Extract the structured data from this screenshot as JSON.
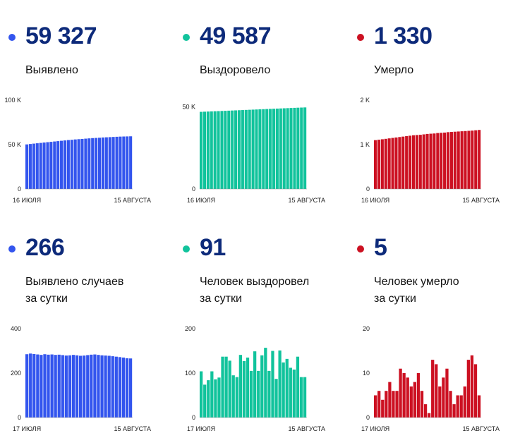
{
  "colors": {
    "blue": "#3355ee",
    "green": "#11c39c",
    "red": "#cc1122",
    "number": "#0d2a7a"
  },
  "panels": [
    {
      "number": "59 327",
      "label_lines": [
        "Выявлено"
      ],
      "color": "#3355ee",
      "chart_data": {
        "type": "bar",
        "yticks": [
          "0",
          "50 K",
          "100 K"
        ],
        "ylim": [
          0,
          100000
        ],
        "x_start_label": "16 июля",
        "x_end_label": "15 августа",
        "values": [
          50200,
          50700,
          51100,
          51500,
          51900,
          52300,
          52700,
          53100,
          53500,
          53900,
          54300,
          54700,
          55100,
          55400,
          55800,
          56100,
          56400,
          56700,
          57000,
          57300,
          57500,
          57700,
          58000,
          58200,
          58400,
          58600,
          58800,
          59000,
          59100,
          59200,
          59327
        ]
      }
    },
    {
      "number": "49 587",
      "label_lines": [
        "Выздоровело"
      ],
      "color": "#11c39c",
      "chart_data": {
        "type": "bar",
        "yticks": [
          "0",
          "50 K"
        ],
        "ylim": [
          0,
          54000
        ],
        "x_start_label": "16 июля",
        "x_end_label": "15 августа",
        "values": [
          46900,
          46990,
          47080,
          47170,
          47260,
          47350,
          47440,
          47530,
          47620,
          47710,
          47800,
          47890,
          47980,
          48070,
          48160,
          48250,
          48340,
          48430,
          48520,
          48610,
          48700,
          48790,
          48880,
          48970,
          49060,
          49150,
          49240,
          49330,
          49420,
          49500,
          49587
        ]
      }
    },
    {
      "number": "1 330",
      "label_lines": [
        "Умерло"
      ],
      "color": "#cc1122",
      "chart_data": {
        "type": "bar",
        "yticks": [
          "0",
          "1 K",
          "2 K"
        ],
        "ylim": [
          0,
          2000
        ],
        "x_start_label": "16 июля",
        "x_end_label": "15 августа",
        "values": [
          1100,
          1110,
          1120,
          1130,
          1140,
          1150,
          1160,
          1170,
          1180,
          1190,
          1200,
          1210,
          1215,
          1220,
          1230,
          1240,
          1245,
          1250,
          1260,
          1265,
          1270,
          1280,
          1285,
          1290,
          1295,
          1300,
          1305,
          1310,
          1315,
          1322,
          1330
        ]
      }
    },
    {
      "number": "266",
      "label_lines": [
        "Выявлено случаев",
        "за сутки"
      ],
      "color": "#3355ee",
      "chart_data": {
        "type": "bar",
        "yticks": [
          "0",
          "200",
          "400"
        ],
        "ylim": [
          0,
          400
        ],
        "x_start_label": "17 июля",
        "x_end_label": "15 августа",
        "values": [
          285,
          288,
          286,
          284,
          282,
          285,
          283,
          284,
          282,
          283,
          281,
          279,
          280,
          282,
          280,
          278,
          279,
          281,
          283,
          284,
          282,
          280,
          279,
          278,
          276,
          274,
          272,
          270,
          267,
          266
        ]
      }
    },
    {
      "number": "91",
      "label_lines": [
        "Человек выздоровел",
        "за сутки"
      ],
      "color": "#11c39c",
      "chart_data": {
        "type": "bar",
        "yticks": [
          "0",
          "100",
          "200"
        ],
        "ylim": [
          0,
          200
        ],
        "x_start_label": "17 июля",
        "x_end_label": "15 августа",
        "values": [
          104,
          74,
          84,
          104,
          86,
          90,
          137,
          137,
          128,
          95,
          91,
          141,
          127,
          135,
          105,
          149,
          105,
          140,
          157,
          105,
          150,
          87,
          151,
          124,
          132,
          112,
          108,
          137,
          91,
          91
        ]
      }
    },
    {
      "number": "5",
      "label_lines": [
        "Человек умерло",
        "за сутки"
      ],
      "color": "#cc1122",
      "chart_data": {
        "type": "bar",
        "yticks": [
          "0",
          "10",
          "20"
        ],
        "ylim": [
          0,
          20
        ],
        "x_start_label": "17 июля",
        "x_end_label": "15 августа",
        "values": [
          5,
          6,
          4,
          6,
          8,
          6,
          6,
          11,
          10,
          9,
          7,
          8,
          10,
          6,
          3,
          1,
          13,
          12,
          7,
          9,
          11,
          6,
          3,
          5,
          5,
          7,
          13,
          14,
          12,
          5
        ]
      }
    }
  ]
}
